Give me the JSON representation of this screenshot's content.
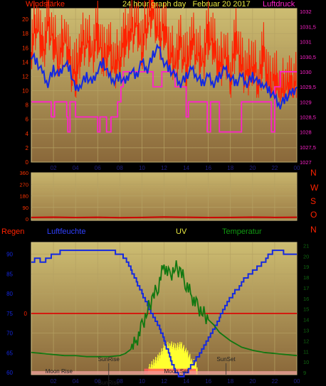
{
  "colors": {
    "bg": "#000000",
    "plot_top": "#c8b66e",
    "plot_bottom": "#8e6c3a",
    "grid": "#b5a263",
    "tick_dark": "#0a0a66",
    "red": "#ff2200",
    "blue": "#1428e0",
    "magenta": "#ff22cc",
    "yellow": "#ffff30",
    "green": "#117711",
    "orange_title": "#e8e840",
    "wind_dir": "#cc0000",
    "x_tick": "#202080"
  },
  "chart_data": [
    {
      "type": "line",
      "title": "24 hour graph day   Februar 20 2017",
      "left_label": "Windstärke",
      "right_label": "Luftdruck",
      "x_ticks": [
        "02",
        "04",
        "06",
        "08",
        "10",
        "12",
        "14",
        "16",
        "18",
        "20",
        "22",
        "00"
      ],
      "y_left_ticks": [
        0,
        2,
        4,
        6,
        8,
        10,
        12,
        14,
        16,
        18,
        20
      ],
      "y_left_range": [
        0,
        21.5
      ],
      "y_right_ticks": [
        "1027",
        "1027,5",
        "1028",
        "1028,5",
        "1029",
        "1029,5",
        "1030",
        "1030,5",
        "1031",
        "1031,5",
        "1032"
      ],
      "y_right_range": [
        1027,
        1032.1
      ],
      "series": [
        {
          "key": "gust",
          "color": "red",
          "x": [
            0,
            0.5,
            1,
            1.5,
            2,
            2.5,
            3,
            3.5,
            4,
            4.5,
            5,
            5.5,
            6,
            6.5,
            7,
            7.5,
            8,
            8.5,
            9,
            9.5,
            10,
            10.5,
            11,
            11.5,
            12,
            12.5,
            13,
            13.5,
            14,
            14.5,
            15,
            15.5,
            16,
            16.5,
            17,
            17.5,
            18,
            18.5,
            19,
            19.5,
            20,
            20.5,
            21,
            21.5,
            22,
            22.5,
            23,
            23.5,
            24
          ],
          "values": [
            18,
            22,
            17,
            21,
            19,
            16,
            20,
            15,
            14,
            18,
            19,
            17,
            20,
            16,
            18,
            15,
            17,
            19,
            20,
            21,
            18,
            22,
            23,
            19,
            21,
            17,
            16,
            18,
            15,
            19,
            17,
            16,
            20,
            18,
            15,
            17,
            14,
            19,
            15,
            14,
            16,
            13,
            17,
            12,
            14,
            11,
            13,
            12,
            13
          ]
        },
        {
          "key": "wind",
          "color": "blue",
          "x": [
            0,
            0.5,
            1,
            1.5,
            2,
            2.5,
            3,
            3.5,
            4,
            4.5,
            5,
            5.5,
            6,
            6.5,
            7,
            7.5,
            8,
            8.5,
            9,
            9.5,
            10,
            10.5,
            11,
            11.5,
            12,
            12.5,
            13,
            13.5,
            14,
            14.5,
            15,
            15.5,
            16,
            16.5,
            17,
            17.5,
            18,
            18.5,
            19,
            19.5,
            20,
            20.5,
            21,
            21.5,
            22,
            22.5,
            23,
            23.5,
            24
          ],
          "values": [
            15,
            14,
            12.5,
            11,
            13,
            12,
            14,
            13,
            10,
            11,
            12,
            11,
            13,
            14,
            12,
            11.5,
            12,
            11,
            13,
            12,
            14,
            13,
            15,
            16,
            14,
            13,
            12,
            11,
            12,
            13,
            12,
            11,
            12,
            11,
            12,
            13,
            12,
            11,
            12,
            11,
            12,
            11,
            11,
            10,
            9,
            8,
            9,
            9.5,
            10.5
          ]
        },
        {
          "key": "pressure",
          "color": "magenta",
          "x": [
            0,
            1.8,
            1.8,
            2.1,
            2.1,
            3.2,
            3.2,
            3.3,
            3.3,
            3.5,
            3.5,
            4.0,
            4.0,
            6.0,
            6.0,
            6.2,
            6.2,
            6.8,
            6.8,
            7.2,
            7.2,
            7.8,
            7.8,
            8.1,
            8.1,
            8.3,
            8.3,
            11.0,
            11.0,
            11.8,
            11.8,
            13.0,
            13.0,
            14.0,
            14.0,
            14.2,
            14.2,
            15.9,
            15.9,
            16.2,
            16.2,
            17.0,
            17.0,
            19.0,
            19.0,
            21.7,
            21.7,
            22.0,
            22.0,
            22.5,
            22.5,
            24
          ],
          "values": [
            1029,
            1029,
            1028.5,
            1028.5,
            1029,
            1029,
            1028.5,
            1028.5,
            1028,
            1028,
            1029,
            1029,
            1028.5,
            1028.5,
            1028,
            1028,
            1028.5,
            1028.5,
            1028,
            1028,
            1028.5,
            1028.5,
            1029,
            1029,
            1029.5,
            1029.5,
            1030,
            1030,
            1029.5,
            1029.5,
            1030,
            1030,
            1029.5,
            1029.5,
            1028.5,
            1028.5,
            1029,
            1029,
            1028,
            1028,
            1029,
            1029,
            1028,
            1028,
            1029,
            1029,
            1028,
            1028,
            1029.5,
            1029.5,
            1030,
            1030
          ]
        }
      ]
    },
    {
      "type": "line",
      "y_ticks": [
        0,
        90,
        180,
        270,
        360
      ],
      "y_range": [
        0,
        360
      ],
      "compass": [
        "N",
        "W",
        "S",
        "O",
        "N"
      ],
      "series": [
        {
          "key": "direction",
          "color": "wind_dir",
          "x": [
            0,
            2,
            4,
            6,
            8,
            10,
            12,
            14,
            16,
            18,
            20,
            22,
            24
          ],
          "values": [
            12,
            14,
            11,
            13,
            10,
            12,
            15,
            13,
            11,
            12,
            14,
            12,
            13
          ]
        }
      ]
    },
    {
      "type": "line",
      "left_label": "Regen",
      "mid_label": "Luftfeuchte",
      "uv_label": "UV",
      "right_label": "Temperatur",
      "x_ticks": [
        "02",
        "04",
        "06",
        "08",
        "10",
        "12",
        "14",
        "16",
        "18",
        "20",
        "22",
        "00"
      ],
      "y_left_ticks": [
        60,
        65,
        70,
        75,
        80,
        85,
        90
      ],
      "y_left_range": [
        59.5,
        93
      ],
      "y_right_ticks": [
        9,
        10,
        11,
        12,
        13,
        14,
        15,
        16,
        17,
        18,
        19,
        20,
        21
      ],
      "y_right_range": [
        8.8,
        21.3
      ],
      "rain_marker": "0",
      "rain_level": 75,
      "events": [
        {
          "label": "SunRise",
          "x": 7.0,
          "row": 1
        },
        {
          "label": "SunSet",
          "x": 17.6,
          "row": 1
        },
        {
          "label": "Moon Rise",
          "x": 2.5,
          "row": 2
        },
        {
          "label": "Moon Set",
          "x": 13.1,
          "row": 2
        },
        {
          "label": "SunRise",
          "x": 7.0,
          "row": 3
        }
      ],
      "series": [
        {
          "key": "humidity",
          "color": "blue",
          "x": [
            0,
            0.5,
            1,
            1.5,
            2,
            3,
            4,
            5,
            6,
            7,
            8,
            8.5,
            9,
            9.5,
            10,
            10.5,
            11,
            11.5,
            12,
            12.5,
            13,
            13.5,
            14,
            14.5,
            15,
            15.5,
            16,
            16.5,
            17,
            17.5,
            18,
            19,
            20,
            21,
            21.5,
            22,
            22.5,
            23,
            24
          ],
          "values": [
            88,
            89,
            88,
            89,
            90,
            91,
            91,
            91,
            91,
            91,
            90,
            89,
            86,
            83,
            80,
            77,
            74,
            72,
            68,
            64,
            60,
            59,
            60,
            62,
            64,
            66,
            69,
            71,
            74,
            77,
            79,
            83,
            86,
            88,
            90,
            91,
            91,
            90,
            90
          ]
        },
        {
          "key": "temperature",
          "color": "green",
          "x": [
            0,
            1,
            2,
            3,
            4,
            5,
            6,
            7,
            8,
            8.5,
            9,
            9.5,
            10,
            10.5,
            11,
            11.5,
            12,
            12.5,
            13,
            13.5,
            14,
            14.5,
            15,
            15.5,
            16,
            16.5,
            17,
            18,
            19,
            20,
            21,
            22,
            23,
            24
          ],
          "values": [
            10.9,
            10.8,
            10.7,
            10.6,
            10.6,
            10.5,
            10.5,
            10.5,
            10.6,
            10.8,
            11.2,
            12.0,
            13.3,
            14.9,
            16.1,
            17.3,
            19.2,
            18.0,
            19.0,
            18.5,
            17.4,
            16.2,
            15.2,
            14.7,
            14.0,
            13.5,
            12.8,
            12.0,
            11.4,
            11.1,
            10.9,
            10.8,
            10.7,
            10.6
          ]
        },
        {
          "key": "uv",
          "color": "yellow",
          "x": [
            10.5,
            11,
            11.5,
            12,
            12.5,
            13,
            13.5,
            14,
            14.5,
            15
          ],
          "values": [
            60.8,
            62.5,
            64.0,
            66.5,
            67.2,
            66.5,
            67.0,
            65.2,
            63.0,
            61.5
          ]
        }
      ]
    }
  ]
}
